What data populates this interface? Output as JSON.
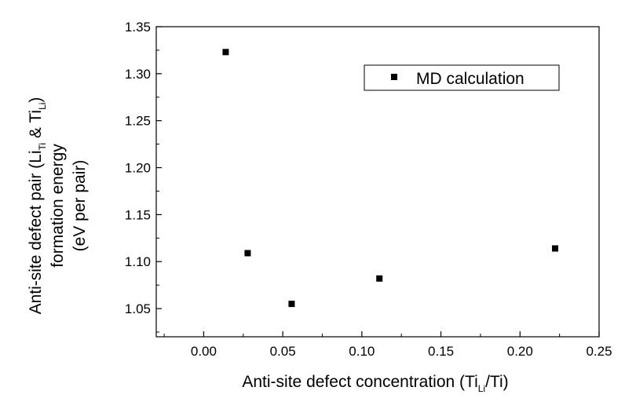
{
  "chart_data": {
    "type": "scatter",
    "title": "",
    "xlabel": "Anti-site defect concentration (Ti",
    "xlabel_sub": "Li",
    "xlabel_end": "/Ti)",
    "ylabel_line1": "Anti-site defect pair (Li",
    "ylabel_line1_sub1": "Ti",
    "ylabel_line1_mid": " & Ti",
    "ylabel_line1_sub2": "Li",
    "ylabel_line1_end": ")",
    "ylabel_line2": "formation energy",
    "ylabel_line3": "(eV per pair)",
    "xlim": [
      -0.03,
      0.25
    ],
    "ylim": [
      1.02,
      1.35
    ],
    "xticks": [
      0.0,
      0.05,
      0.1,
      0.15,
      0.2,
      0.25
    ],
    "xtick_labels": [
      "0.00",
      "0.05",
      "0.10",
      "0.15",
      "0.20",
      "0.25"
    ],
    "yticks": [
      1.05,
      1.1,
      1.15,
      1.2,
      1.25,
      1.3,
      1.35
    ],
    "ytick_labels": [
      "1.05",
      "1.10",
      "1.15",
      "1.20",
      "1.25",
      "1.30",
      "1.35"
    ],
    "legend_position": "top-right",
    "series": [
      {
        "name": "MD calculation",
        "marker": "square",
        "color": "#000000",
        "x": [
          0.0139,
          0.0278,
          0.0556,
          0.1111,
          0.2222
        ],
        "y": [
          1.323,
          1.109,
          1.055,
          1.082,
          1.114
        ]
      }
    ]
  }
}
